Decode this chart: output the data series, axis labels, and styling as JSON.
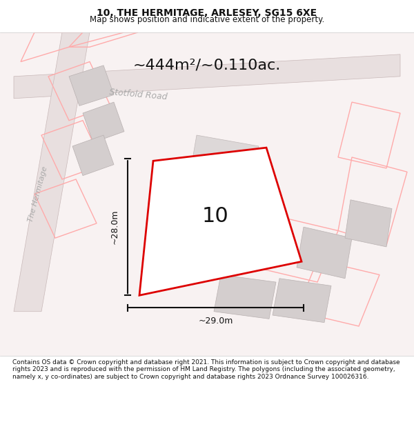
{
  "title": "10, THE HERMITAGE, ARLESEY, SG15 6XE",
  "subtitle": "Map shows position and indicative extent of the property.",
  "footer": "Contains OS data © Crown copyright and database right 2021. This information is subject to Crown copyright and database rights 2023 and is reproduced with the permission of HM Land Registry. The polygons (including the associated geometry, namely x, y co-ordinates) are subject to Crown copyright and database rights 2023 Ordnance Survey 100026316.",
  "area_label": "~444m²/~0.110ac.",
  "property_number": "10",
  "dim_width": "~29.0m",
  "dim_height": "~28.0m",
  "road_label": "Stotfold Road",
  "street_label": "The Hermitage",
  "bg_color": "#f5f0f0",
  "map_bg": "#f8f4f4",
  "road_color": "#ccbbbb",
  "building_fill": "#d8d0d0",
  "building_stroke": "#bbaaaa",
  "red_line_color": "#dd0000",
  "red_outline_color": "#ffaaaa",
  "black_color": "#111111",
  "gray_text": "#aaaaaa"
}
